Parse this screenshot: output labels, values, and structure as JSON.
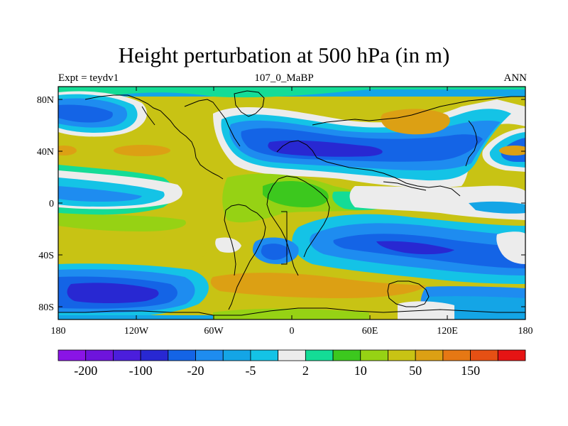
{
  "title": "Height perturbation at 500 hPa (in m)",
  "subtitle_left": "Expt = teydv1",
  "subtitle_center": "107_0_MaBP",
  "subtitle_right": "ANN",
  "lat_ticks": [
    "80N",
    "40N",
    "0",
    "40S",
    "80S"
  ],
  "lon_ticks": [
    "180",
    "120W",
    "60W",
    "0",
    "60E",
    "120E",
    "180"
  ],
  "colorbar": {
    "colors": [
      "#8a14e6",
      "#6e14dc",
      "#4b1edc",
      "#2828d2",
      "#1464e6",
      "#1e8cf0",
      "#14a5e6",
      "#14c3e6",
      "#ececec",
      "#14dc96",
      "#3cc81e",
      "#96d214",
      "#c8c314",
      "#dca014",
      "#e67814",
      "#e65014",
      "#e61414"
    ],
    "labels": [
      "-200",
      "-100",
      "-20",
      "-5",
      "2",
      "10",
      "50",
      "150"
    ]
  },
  "palette": {
    "yellow": "#c8c314",
    "orange": "#dca014",
    "lightgreen": "#96d214",
    "green": "#3cc81e",
    "teal": "#14dc96",
    "white": "#ececec",
    "cyan": "#14c3e6",
    "skyblue": "#14a5e6",
    "blue": "#1e8cf0",
    "royal": "#1464e6",
    "navy": "#2828d2"
  }
}
